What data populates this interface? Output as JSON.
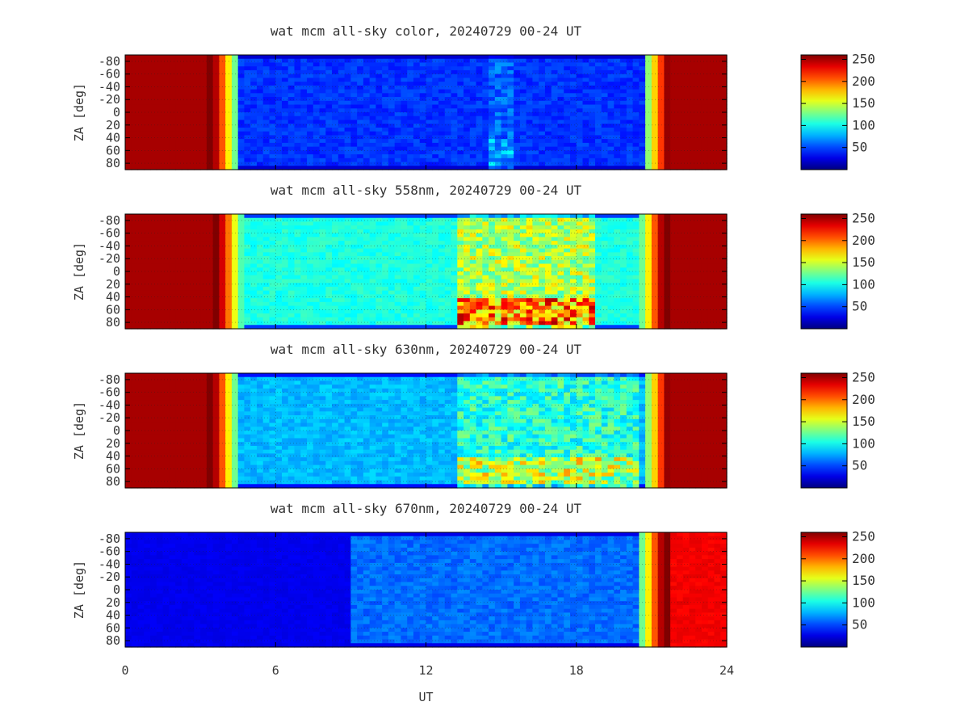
{
  "chart_data": [
    {
      "type": "heatmap",
      "title": "wat mcm all-sky color, 20240729 00-24 UT",
      "ylabel": "ZA [deg]",
      "xlabel": "",
      "xlim": [
        0,
        24
      ],
      "ylim": [
        -90,
        90
      ],
      "y_ticks": [
        "-80",
        "-60",
        "-40",
        "-20",
        "0",
        "20",
        "40",
        "60",
        "80"
      ],
      "x_ticks": [],
      "sun_low_start_ut": 3.6,
      "sun_low_end_ut": 21.6,
      "night_mean_intensity": 45,
      "activity": [
        {
          "ut_start": 14.5,
          "ut_end": 15.5,
          "level": 20
        }
      ],
      "colorbar": {
        "ticks": [
          "250",
          "200",
          "150",
          "100",
          "50"
        ],
        "range": [
          0,
          260
        ]
      }
    },
    {
      "type": "heatmap",
      "title": "wat mcm all-sky 558nm, 20240729 00-24 UT",
      "ylabel": "ZA [deg]",
      "xlabel": "",
      "xlim": [
        0,
        24
      ],
      "ylim": [
        -90,
        90
      ],
      "y_ticks": [
        "-80",
        "-60",
        "-40",
        "-20",
        "0",
        "20",
        "40",
        "60",
        "80"
      ],
      "x_ticks": [],
      "sun_low_start_ut": 3.8,
      "sun_low_end_ut": 21.4,
      "night_mean_intensity": 105,
      "activity": [
        {
          "ut_start": 13.2,
          "ut_end": 18.8,
          "level": 60
        }
      ],
      "colorbar": {
        "ticks": [
          "250",
          "200",
          "150",
          "100",
          "50"
        ],
        "range": [
          0,
          260
        ]
      }
    },
    {
      "type": "heatmap",
      "title": "wat mcm all-sky 630nm, 20240729 00-24 UT",
      "ylabel": "ZA [deg]",
      "xlabel": "",
      "xlim": [
        0,
        24
      ],
      "ylim": [
        -90,
        90
      ],
      "y_ticks": [
        "-80",
        "-60",
        "-40",
        "-20",
        "0",
        "20",
        "40",
        "60",
        "80"
      ],
      "x_ticks": [],
      "sun_low_start_ut": 3.6,
      "sun_low_end_ut": 21.6,
      "night_mean_intensity": 80,
      "activity": [
        {
          "ut_start": 13.3,
          "ut_end": 20.5,
          "level": 45
        }
      ],
      "colorbar": {
        "ticks": [
          "250",
          "200",
          "150",
          "100",
          "50"
        ],
        "range": [
          0,
          260
        ]
      }
    },
    {
      "type": "heatmap",
      "title": "wat mcm all-sky 670nm, 20240729 00-24 UT",
      "ylabel": "ZA [deg]",
      "xlabel": "UT",
      "xlim": [
        0,
        24
      ],
      "ylim": [
        -90,
        90
      ],
      "y_ticks": [
        "-80",
        "-60",
        "-40",
        "-20",
        "0",
        "20",
        "40",
        "60",
        "80"
      ],
      "x_ticks": [
        "0",
        "6",
        "12",
        "18",
        "24"
      ],
      "no_data_until_ut": 9.0,
      "sun_low_end_ut": 21.4,
      "night_mean_intensity": 60,
      "activity": [],
      "colorbar": {
        "ticks": [
          "250",
          "200",
          "150",
          "100",
          "50"
        ],
        "range": [
          0,
          260
        ]
      }
    }
  ]
}
